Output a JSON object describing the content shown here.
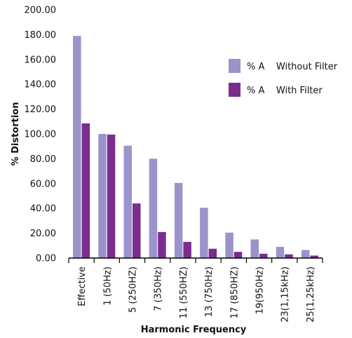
{
  "chart_data": {
    "type": "bar",
    "title": "",
    "xlabel": "Harmonic Frequency",
    "ylabel": "% Distortion",
    "ylim": [
      0,
      200
    ],
    "yticks": [
      "0.00",
      "20.00",
      "40.00",
      "60.00",
      "80.00",
      "100.00",
      "120.00",
      "140.00",
      "160.00",
      "180.00",
      "200.00"
    ],
    "categories": [
      "Effective",
      "1 (50Hz)",
      "5 (250HZ)",
      "7 (350Hz)",
      "11 (550HZ)",
      "13 (750Hz)",
      "17 (850HZ)",
      "19(950Hz)",
      "23(1,15kHz)",
      "25(1,25kHz)"
    ],
    "series": [
      {
        "name": "% A    Without Filter",
        "color": "#9b93c9",
        "values": [
          179,
          100,
          90.5,
          80,
          60.5,
          40.5,
          20.5,
          15,
          9,
          6.5
        ]
      },
      {
        "name": "% A    With Filter",
        "color": "#7b2d8e",
        "values": [
          108.5,
          99.5,
          44,
          21,
          13,
          7.5,
          5,
          3.5,
          3,
          2
        ]
      }
    ],
    "grid": false,
    "legend": "top-right"
  }
}
